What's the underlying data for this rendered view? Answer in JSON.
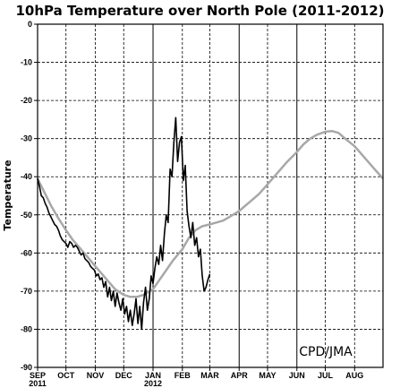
{
  "chart_data": {
    "type": "line",
    "title": "10hPa Temperature over North Pole (2011-2012)",
    "ylabel": "Temperature",
    "xlabel": "",
    "credit": "CPD/JMA",
    "ylim": [
      -90,
      0
    ],
    "yticks": [
      0,
      -10,
      -20,
      -30,
      -40,
      -50,
      -60,
      -70,
      -80,
      -90
    ],
    "ytick_labels": [
      "0",
      "-10",
      "-20",
      "-30",
      "-40",
      "-50",
      "-60",
      "-70",
      "-80",
      "-90"
    ],
    "xlim": [
      "2011-09-01",
      "2012-08-31"
    ],
    "xticks": [
      {
        "date": "2011-09-01",
        "label": "SEP",
        "sublabel": "2011",
        "dashed": false
      },
      {
        "date": "2011-10-01",
        "label": "OCT",
        "sublabel": "",
        "dashed": true
      },
      {
        "date": "2011-11-01",
        "label": "NOV",
        "sublabel": "",
        "dashed": true
      },
      {
        "date": "2011-12-01",
        "label": "DEC",
        "sublabel": "",
        "dashed": true
      },
      {
        "date": "2012-01-01",
        "label": "JAN",
        "sublabel": "2012",
        "dashed": false
      },
      {
        "date": "2012-02-01",
        "label": "FEB",
        "sublabel": "",
        "dashed": true
      },
      {
        "date": "2012-03-01",
        "label": "MAR",
        "sublabel": "",
        "dashed": true
      },
      {
        "date": "2012-04-01",
        "label": "APR",
        "sublabel": "",
        "dashed": false
      },
      {
        "date": "2012-05-01",
        "label": "MAY",
        "sublabel": "",
        "dashed": true
      },
      {
        "date": "2012-06-01",
        "label": "JUN",
        "sublabel": "",
        "dashed": false
      },
      {
        "date": "2012-07-01",
        "label": "JUL",
        "sublabel": "",
        "dashed": true
      },
      {
        "date": "2012-08-01",
        "label": "AUG",
        "sublabel": "",
        "dashed": true
      }
    ],
    "grid": true,
    "series": [
      {
        "color": "#a8a8a8",
        "points": [
          [
            "2011-09-01",
            -40.5
          ],
          [
            "2011-09-08",
            -44
          ],
          [
            "2011-09-15",
            -47.5
          ],
          [
            "2011-09-22",
            -50.5
          ],
          [
            "2011-10-01",
            -54
          ],
          [
            "2011-10-08",
            -56.5
          ],
          [
            "2011-10-15",
            -58.5
          ],
          [
            "2011-10-22",
            -60.5
          ],
          [
            "2011-11-01",
            -63.5
          ],
          [
            "2011-11-08",
            -65.5
          ],
          [
            "2011-11-15",
            -67.5
          ],
          [
            "2011-11-22",
            -69.5
          ],
          [
            "2011-12-01",
            -71
          ],
          [
            "2011-12-08",
            -71.5
          ],
          [
            "2011-12-15",
            -71.5
          ],
          [
            "2011-12-22",
            -71
          ],
          [
            "2012-01-01",
            -69.5
          ],
          [
            "2012-01-08",
            -67
          ],
          [
            "2012-01-15",
            -64.5
          ],
          [
            "2012-01-22",
            -62
          ],
          [
            "2012-02-01",
            -59
          ],
          [
            "2012-02-08",
            -56
          ],
          [
            "2012-02-15",
            -54
          ],
          [
            "2012-02-22",
            -53
          ],
          [
            "2012-03-01",
            -52.5
          ],
          [
            "2012-03-08",
            -52
          ],
          [
            "2012-03-15",
            -51.5
          ],
          [
            "2012-03-22",
            -50.5
          ],
          [
            "2012-04-01",
            -49
          ],
          [
            "2012-04-08",
            -47.5
          ],
          [
            "2012-04-15",
            -46
          ],
          [
            "2012-04-22",
            -44.5
          ],
          [
            "2012-05-01",
            -42
          ],
          [
            "2012-05-08",
            -40
          ],
          [
            "2012-05-15",
            -38
          ],
          [
            "2012-05-22",
            -36
          ],
          [
            "2012-06-01",
            -33.5
          ],
          [
            "2012-06-08",
            -31.5
          ],
          [
            "2012-06-15",
            -30
          ],
          [
            "2012-06-22",
            -29
          ],
          [
            "2012-07-01",
            -28.2
          ],
          [
            "2012-07-08",
            -28
          ],
          [
            "2012-07-15",
            -28.5
          ],
          [
            "2012-07-22",
            -30
          ],
          [
            "2012-08-01",
            -32
          ],
          [
            "2012-08-08",
            -34
          ],
          [
            "2012-08-15",
            -36
          ],
          [
            "2012-08-22",
            -38
          ],
          [
            "2012-08-31",
            -40.5
          ]
        ]
      },
      {
        "color": "#000000",
        "points": [
          [
            "2011-09-01",
            -40.5
          ],
          [
            "2011-09-03",
            -42.5
          ],
          [
            "2011-09-05",
            -45
          ],
          [
            "2011-09-07",
            -45.5
          ],
          [
            "2011-09-09",
            -47
          ],
          [
            "2011-09-11",
            -48
          ],
          [
            "2011-09-13",
            -49.5
          ],
          [
            "2011-09-15",
            -50.5
          ],
          [
            "2011-09-17",
            -51.5
          ],
          [
            "2011-09-19",
            -52.5
          ],
          [
            "2011-09-21",
            -53
          ],
          [
            "2011-09-23",
            -54
          ],
          [
            "2011-09-25",
            -55.5
          ],
          [
            "2011-09-27",
            -56.5
          ],
          [
            "2011-09-29",
            -57
          ],
          [
            "2011-10-01",
            -57.5
          ],
          [
            "2011-10-03",
            -58.5
          ],
          [
            "2011-10-05",
            -57
          ],
          [
            "2011-10-07",
            -57.5
          ],
          [
            "2011-10-09",
            -58.5
          ],
          [
            "2011-10-11",
            -58
          ],
          [
            "2011-10-13",
            -58.5
          ],
          [
            "2011-10-15",
            -59.5
          ],
          [
            "2011-10-17",
            -60.5
          ],
          [
            "2011-10-19",
            -60
          ],
          [
            "2011-10-21",
            -61.5
          ],
          [
            "2011-10-23",
            -62
          ],
          [
            "2011-10-25",
            -62.5
          ],
          [
            "2011-10-27",
            -63.5
          ],
          [
            "2011-10-29",
            -64
          ],
          [
            "2011-10-31",
            -64.5
          ],
          [
            "2011-11-02",
            -66
          ],
          [
            "2011-11-04",
            -65.5
          ],
          [
            "2011-11-06",
            -67
          ],
          [
            "2011-11-08",
            -66.5
          ],
          [
            "2011-11-10",
            -69
          ],
          [
            "2011-11-12",
            -67.5
          ],
          [
            "2011-11-14",
            -71.5
          ],
          [
            "2011-11-16",
            -69
          ],
          [
            "2011-11-18",
            -72.5
          ],
          [
            "2011-11-20",
            -70
          ],
          [
            "2011-11-22",
            -74
          ],
          [
            "2011-11-24",
            -70.5
          ],
          [
            "2011-11-26",
            -73
          ],
          [
            "2011-11-28",
            -75
          ],
          [
            "2011-11-30",
            -72
          ],
          [
            "2011-12-02",
            -76
          ],
          [
            "2011-12-04",
            -74
          ],
          [
            "2011-12-06",
            -78
          ],
          [
            "2011-12-08",
            -75
          ],
          [
            "2011-12-10",
            -79
          ],
          [
            "2011-12-12",
            -76
          ],
          [
            "2011-12-14",
            -72
          ],
          [
            "2011-12-16",
            -78.5
          ],
          [
            "2011-12-18",
            -74
          ],
          [
            "2011-12-20",
            -80
          ],
          [
            "2011-12-22",
            -73
          ],
          [
            "2011-12-24",
            -69
          ],
          [
            "2011-12-26",
            -75
          ],
          [
            "2011-12-28",
            -72
          ],
          [
            "2011-12-30",
            -66
          ],
          [
            "2012-01-01",
            -68
          ],
          [
            "2012-01-03",
            -64
          ],
          [
            "2012-01-05",
            -61
          ],
          [
            "2012-01-07",
            -63
          ],
          [
            "2012-01-09",
            -58
          ],
          [
            "2012-01-11",
            -62
          ],
          [
            "2012-01-13",
            -55
          ],
          [
            "2012-01-15",
            -50
          ],
          [
            "2012-01-17",
            -52
          ],
          [
            "2012-01-19",
            -38
          ],
          [
            "2012-01-21",
            -40
          ],
          [
            "2012-01-23",
            -31
          ],
          [
            "2012-01-25",
            -24.5
          ],
          [
            "2012-01-27",
            -36
          ],
          [
            "2012-01-29",
            -31
          ],
          [
            "2012-01-31",
            -29.5
          ],
          [
            "2012-02-02",
            -41
          ],
          [
            "2012-02-04",
            -37
          ],
          [
            "2012-02-06",
            -49
          ],
          [
            "2012-02-08",
            -53
          ],
          [
            "2012-02-10",
            -56
          ],
          [
            "2012-02-12",
            -52
          ],
          [
            "2012-02-14",
            -58
          ],
          [
            "2012-02-16",
            -56
          ],
          [
            "2012-02-18",
            -61
          ],
          [
            "2012-02-20",
            -59
          ],
          [
            "2012-02-22",
            -66
          ],
          [
            "2012-02-24",
            -70
          ],
          [
            "2012-02-26",
            -69
          ],
          [
            "2012-02-28",
            -67
          ],
          [
            "2012-03-01",
            -65.5
          ]
        ]
      }
    ]
  }
}
